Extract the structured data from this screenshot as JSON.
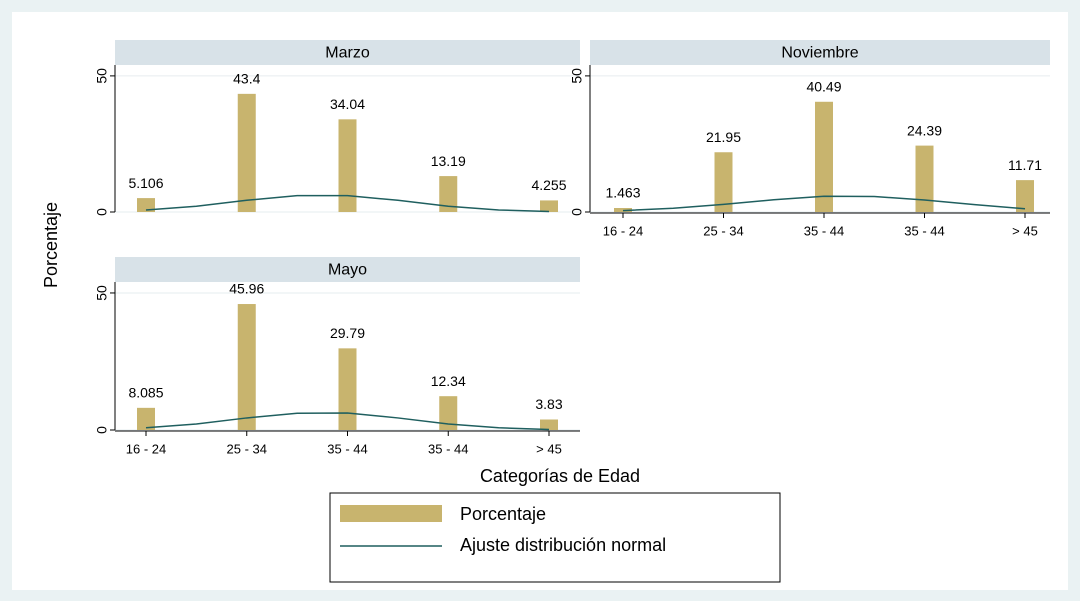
{
  "y_label": "Porcentaje",
  "x_label": "Categorías de Edad",
  "chart_data": [
    {
      "type": "bar",
      "title": "Marzo",
      "categories": [
        null,
        null,
        null,
        null,
        null
      ],
      "series": [
        {
          "name": "Porcentaje",
          "color": "#c8b46e",
          "values": [
            5.106,
            43.4,
            34.04,
            13.19,
            4.255
          ]
        },
        {
          "name": "Ajuste distribución normal",
          "type": "line",
          "color": "#1f5f5f",
          "x": [
            1,
            1.5,
            2,
            2.5,
            3,
            3.5,
            4,
            4.5,
            5
          ],
          "values": [
            0.75,
            2.1,
            4.3,
            6.0,
            6.0,
            4.3,
            2.1,
            0.75,
            0.2
          ]
        }
      ],
      "ylim": [
        0,
        54
      ],
      "yticks": [
        0,
        50
      ],
      "grid": true
    },
    {
      "type": "bar",
      "title": "Noviembre",
      "categories": [
        "16 - 24",
        "25 - 34",
        "35 - 44",
        "35 - 44",
        "> 45"
      ],
      "series": [
        {
          "name": "Porcentaje",
          "color": "#c8b46e",
          "values": [
            1.463,
            21.95,
            40.49,
            24.39,
            11.71
          ]
        },
        {
          "name": "Ajuste distribución normal",
          "type": "line",
          "color": "#1f5f5f",
          "x": [
            1,
            1.5,
            2,
            2.5,
            3,
            3.5,
            4,
            4.5,
            5
          ],
          "values": [
            0.5,
            1.4,
            2.8,
            4.5,
            5.8,
            5.7,
            4.4,
            2.7,
            1.2
          ]
        }
      ],
      "ylim": [
        0,
        54
      ],
      "yticks": [
        0,
        50
      ],
      "grid": true
    },
    {
      "type": "bar",
      "title": "Mayo",
      "categories": [
        "16 - 24",
        "25 - 34",
        "35 - 44",
        "35 - 44",
        "> 45"
      ],
      "series": [
        {
          "name": "Porcentaje",
          "color": "#c8b46e",
          "values": [
            8.085,
            45.96,
            29.79,
            12.34,
            3.83
          ]
        },
        {
          "name": "Ajuste distribución normal",
          "type": "line",
          "color": "#1f5f5f",
          "x": [
            1,
            1.5,
            2,
            2.5,
            3,
            3.5,
            4,
            4.5,
            5
          ],
          "values": [
            0.8,
            2.2,
            4.4,
            6.1,
            6.2,
            4.4,
            2.2,
            0.8,
            0.2
          ]
        }
      ],
      "ylim": [
        0,
        54
      ],
      "yticks": [
        0,
        50
      ],
      "grid": true
    }
  ]
}
